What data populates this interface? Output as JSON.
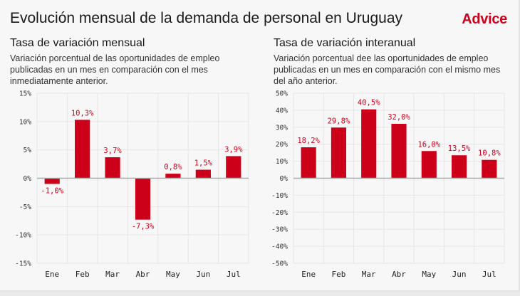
{
  "header": {
    "title": "Evolución mensual de la demanda de personal en Uruguay",
    "logo": "Advice"
  },
  "colors": {
    "bar": "#cc0019",
    "label": "#d0021b",
    "grid": "#e6e6e6",
    "zero": "#aaaaaa"
  },
  "panels": [
    {
      "title": "Tasa de variación mensual",
      "description": "Variación porcentual de las oportunidades de empleo publicadas en un mes en comparación con el mes inmediatamente anterior."
    },
    {
      "title": "Tasa de variación interanual",
      "description": "Variación porcentual dee las oportunidades de empleo publicadas en un mes en comparación con el mismo mes del año anterior."
    }
  ],
  "chart_data": [
    {
      "type": "bar",
      "title": "Tasa de variación mensual",
      "categories": [
        "Ene",
        "Feb",
        "Mar",
        "Abr",
        "May",
        "Jun",
        "Jul"
      ],
      "values": [
        -1.0,
        10.3,
        3.7,
        -7.3,
        0.8,
        1.5,
        3.9
      ],
      "data_labels": [
        "-1,0%",
        "10,3%",
        "3,7%",
        "-7,3%",
        "0,8%",
        "1,5%",
        "3,9%"
      ],
      "ylim": [
        -15,
        15
      ],
      "yticks": [
        15,
        10,
        5,
        0,
        -5,
        -10,
        -15
      ],
      "ytick_labels": [
        "15%",
        "10%",
        "5%",
        "0%",
        "-5%",
        "-10%",
        "-15%"
      ],
      "grid": true
    },
    {
      "type": "bar",
      "title": "Tasa de variación interanual",
      "categories": [
        "Ene",
        "Feb",
        "Mar",
        "Abr",
        "May",
        "Jun",
        "Jul"
      ],
      "values": [
        18.2,
        29.8,
        40.5,
        32.0,
        16.0,
        13.5,
        10.8
      ],
      "data_labels": [
        "18,2%",
        "29,8%",
        "40,5%",
        "32,0%",
        "16,0%",
        "13,5%",
        "10,8%"
      ],
      "ylim": [
        -50,
        50
      ],
      "yticks": [
        50,
        40,
        30,
        20,
        10,
        0,
        -10,
        -20,
        -30,
        -40,
        -50
      ],
      "ytick_labels": [
        "50%",
        "40%",
        "30%",
        "20%",
        "10%",
        "0%",
        "-10%",
        "-20%",
        "-30%",
        "-40%",
        "-50%"
      ],
      "grid": true
    }
  ]
}
